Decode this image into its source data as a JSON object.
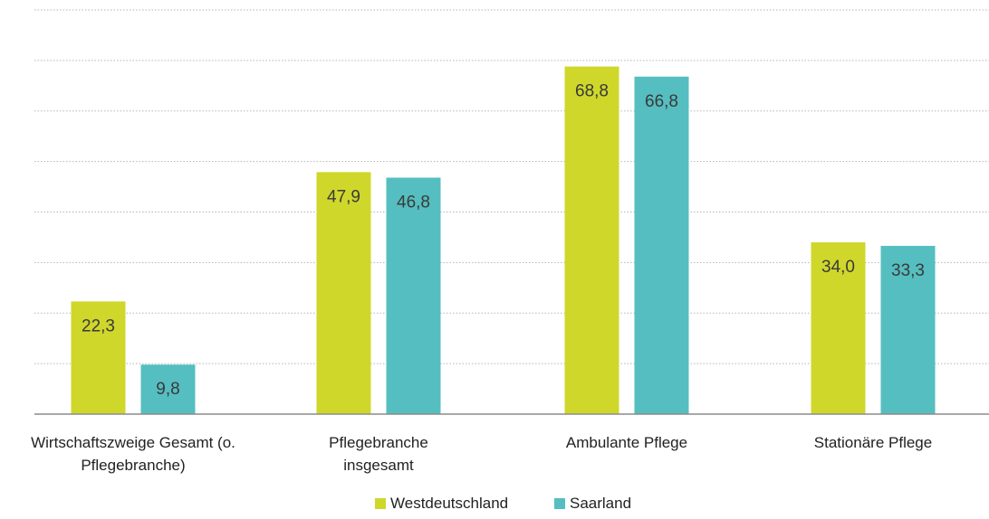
{
  "chart_data": {
    "type": "bar",
    "categories": [
      [
        "Wirtschaftszweige Gesamt (o.",
        "Pflegebranche)"
      ],
      [
        "Pflegebranche",
        "insgesamt"
      ],
      [
        "Ambulante Pflege"
      ],
      [
        "Stationäre Pflege"
      ]
    ],
    "series": [
      {
        "name": "Westdeutschland",
        "color": "#cfd72b",
        "values": [
          22.3,
          47.9,
          68.8,
          34.0
        ],
        "labels": [
          "22,3",
          "47,9",
          "68,8",
          "34,0"
        ]
      },
      {
        "name": "Saarland",
        "color": "#55bec0",
        "values": [
          9.8,
          46.8,
          66.8,
          33.3
        ],
        "labels": [
          "9,8",
          "46,8",
          "66,8",
          "33,3"
        ]
      }
    ],
    "ylim": [
      0,
      80
    ],
    "grid": true,
    "legend": "bottom-center",
    "title": "",
    "xlabel": "",
    "ylabel": ""
  }
}
